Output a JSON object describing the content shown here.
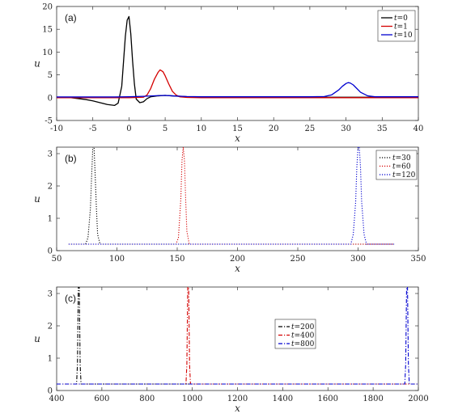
{
  "chart_data": [
    {
      "type": "line",
      "panel_label": "(a)",
      "xlabel": "x",
      "ylabel": "u",
      "xlim": [
        -10,
        40
      ],
      "ylim": [
        -5,
        20
      ],
      "xticks": [
        -10,
        -5,
        0,
        5,
        10,
        15,
        20,
        25,
        30,
        35,
        40
      ],
      "yticks": [
        -5,
        0,
        5,
        10,
        15,
        20
      ],
      "legend_position": "top-right",
      "series": [
        {
          "name": "t=0",
          "color": "#000000",
          "style": "solid",
          "x": [
            -10,
            -8,
            -6,
            -5,
            -4,
            -3,
            -2,
            -1.5,
            -1,
            -0.75,
            -0.5,
            -0.25,
            0,
            0.25,
            0.5,
            0.75,
            1,
            1.5,
            2,
            2.5,
            3,
            4,
            5,
            6,
            8,
            10,
            15,
            20,
            30,
            40
          ],
          "y": [
            0.1,
            0,
            -0.4,
            -0.7,
            -1.1,
            -1.5,
            -1.7,
            -1.2,
            2.5,
            8,
            13.5,
            17.0,
            17.8,
            14,
            8,
            3,
            -0.3,
            -1.1,
            -0.9,
            -0.2,
            0.2,
            0.4,
            0.5,
            0.4,
            0.2,
            0.1,
            0.1,
            0.1,
            0.1,
            0.1
          ]
        },
        {
          "name": "t=1",
          "color": "#d40000",
          "style": "solid",
          "x": [
            -10,
            0,
            2,
            2.5,
            3,
            3.5,
            4,
            4.3,
            4.7,
            5,
            5.5,
            6,
            6.5,
            7,
            8,
            10,
            20,
            30,
            40
          ],
          "y": [
            0,
            0,
            0.1,
            0.6,
            2,
            4,
            5.5,
            6.1,
            5.7,
            4.8,
            3,
            1.4,
            0.6,
            0.2,
            0.05,
            0,
            0,
            0,
            0
          ]
        },
        {
          "name": "t=10",
          "color": "#0000d0",
          "style": "solid",
          "x": [
            -10,
            -2,
            0,
            2,
            4,
            5,
            6,
            8,
            10,
            20,
            25,
            27,
            28,
            29,
            29.5,
            30,
            30.3,
            30.6,
            31,
            31.5,
            32,
            33,
            34,
            35,
            40
          ],
          "y": [
            0.15,
            0.15,
            0.2,
            0.3,
            0.45,
            0.5,
            0.4,
            0.25,
            0.2,
            0.2,
            0.2,
            0.25,
            0.6,
            1.7,
            2.5,
            3.1,
            3.3,
            3.2,
            2.8,
            2.0,
            1.2,
            0.4,
            0.2,
            0.2,
            0.2
          ]
        }
      ]
    },
    {
      "type": "line",
      "panel_label": "(b)",
      "xlabel": "x",
      "ylabel": "u",
      "xlim": [
        50,
        350
      ],
      "ylim": [
        0,
        3.2
      ],
      "xticks": [
        50,
        100,
        150,
        200,
        250,
        300,
        350
      ],
      "yticks": [
        0,
        1,
        2,
        3
      ],
      "legend_position": "top-right",
      "series": [
        {
          "name": "t=30",
          "color": "#000000",
          "style": "dotted",
          "x": [
            60,
            74,
            76,
            78,
            79,
            80,
            81,
            82,
            83,
            84,
            86,
            330
          ],
          "y": [
            0.2,
            0.2,
            0.4,
            1.3,
            2.3,
            3.2,
            3.2,
            2.3,
            1.3,
            0.5,
            0.2,
            0.2
          ]
        },
        {
          "name": "t=60",
          "color": "#d40000",
          "style": "dotted",
          "x": [
            60,
            149,
            151,
            153,
            154,
            155,
            156,
            157,
            158,
            160,
            330
          ],
          "y": [
            0.2,
            0.2,
            0.4,
            1.6,
            2.8,
            3.2,
            2.8,
            1.6,
            0.6,
            0.2,
            0.2
          ]
        },
        {
          "name": "t=120",
          "color": "#0000d0",
          "style": "dotted",
          "x": [
            60,
            294,
            296,
            298,
            299,
            300,
            301,
            302,
            303,
            305,
            307,
            330
          ],
          "y": [
            0.2,
            0.2,
            0.5,
            1.5,
            2.6,
            3.2,
            3.2,
            2.6,
            1.5,
            0.5,
            0.2,
            0.2
          ]
        }
      ]
    },
    {
      "type": "line",
      "panel_label": "(c)",
      "xlabel": "x",
      "ylabel": "u",
      "xlim": [
        400,
        2000
      ],
      "ylim": [
        0,
        3.2
      ],
      "xticks": [
        400,
        600,
        800,
        1000,
        1200,
        1400,
        1600,
        1800,
        2000
      ],
      "yticks": [
        0,
        1,
        2,
        3
      ],
      "legend_position": "center-right",
      "series": [
        {
          "name": "t=200",
          "color": "#000000",
          "style": "dashdot",
          "x": [
            400,
            488,
            492,
            496,
            500,
            504,
            508,
            2000
          ],
          "y": [
            0.2,
            0.2,
            0.8,
            3.2,
            3.2,
            0.8,
            0.2,
            0.2
          ]
        },
        {
          "name": "t=400",
          "color": "#d40000",
          "style": "dashdot",
          "x": [
            400,
            972,
            976,
            980,
            984,
            988,
            992,
            2000
          ],
          "y": [
            0.2,
            0.2,
            0.8,
            3.2,
            3.2,
            0.8,
            0.2,
            0.2
          ]
        },
        {
          "name": "t=800",
          "color": "#0000d0",
          "style": "dashdot",
          "x": [
            400,
            1940,
            1944,
            1948,
            1952,
            1956,
            1960,
            2000
          ],
          "y": [
            0.2,
            0.2,
            0.8,
            3.2,
            3.2,
            0.8,
            0.2,
            0.2
          ]
        }
      ]
    }
  ]
}
